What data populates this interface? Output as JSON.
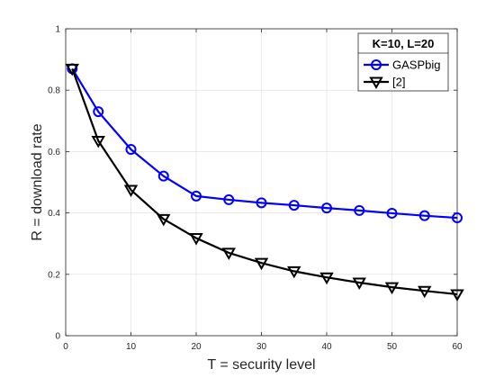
{
  "chart_data": {
    "type": "line",
    "xlabel": "T = security level",
    "ylabel": "R = download rate",
    "xlim": [
      0,
      60
    ],
    "ylim": [
      0,
      1
    ],
    "xticks": [
      0,
      10,
      20,
      30,
      40,
      50,
      60
    ],
    "yticks": [
      0,
      0.2,
      0.4,
      0.6,
      0.8,
      1
    ],
    "grid": true,
    "legend": {
      "title": "K=10, L=20",
      "position": "top-right"
    },
    "series": [
      {
        "name": "GASPbig",
        "color": "#0000ff",
        "marker": "circle",
        "x": [
          1,
          5,
          10,
          15,
          20,
          25,
          30,
          35,
          40,
          45,
          50,
          55,
          60
        ],
        "y": [
          0.87,
          0.73,
          0.607,
          0.52,
          0.455,
          0.443,
          0.433,
          0.425,
          0.416,
          0.408,
          0.399,
          0.391,
          0.384
        ]
      },
      {
        "name": "[2]",
        "color": "#000000",
        "marker": "triangle-down",
        "x": [
          1,
          5,
          10,
          15,
          20,
          25,
          30,
          35,
          40,
          45,
          50,
          55,
          60
        ],
        "y": [
          0.87,
          0.635,
          0.475,
          0.38,
          0.318,
          0.27,
          0.237,
          0.21,
          0.19,
          0.173,
          0.158,
          0.146,
          0.135
        ]
      }
    ]
  }
}
